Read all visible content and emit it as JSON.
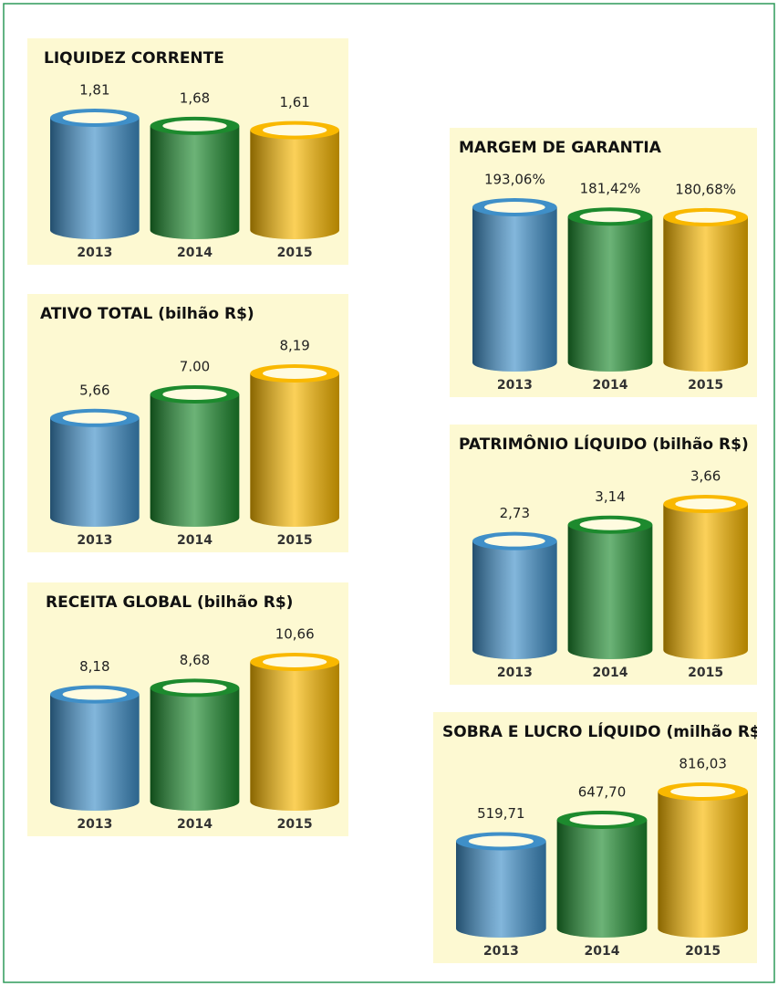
{
  "chart_data": [
    {
      "type": "bar",
      "title": "LIQUIDEZ CORRENTE",
      "categories": [
        "2013",
        "2014",
        "2015"
      ],
      "values": [
        1.81,
        1.68,
        1.61
      ],
      "value_labels": [
        "1,81",
        "1,68",
        "1,61"
      ],
      "colors": [
        "#3f8fc8",
        "#1d8a2e",
        "#f9b800"
      ]
    },
    {
      "type": "bar",
      "title": "ATIVO TOTAL (bilhão R$)",
      "categories": [
        "2013",
        "2014",
        "2015"
      ],
      "values": [
        5.66,
        7.0,
        8.19
      ],
      "value_labels": [
        "5,66",
        "7.00",
        "8,19"
      ],
      "colors": [
        "#3f8fc8",
        "#1d8a2e",
        "#f9b800"
      ]
    },
    {
      "type": "bar",
      "title": "RECEITA GLOBAL (bilhão R$)",
      "categories": [
        "2013",
        "2014",
        "2015"
      ],
      "values": [
        8.18,
        8.68,
        10.66
      ],
      "value_labels": [
        "8,18",
        "8,68",
        "10,66"
      ],
      "colors": [
        "#3f8fc8",
        "#1d8a2e",
        "#f9b800"
      ]
    },
    {
      "type": "bar",
      "title": "MARGEM DE GARANTIA",
      "categories": [
        "2013",
        "2014",
        "2015"
      ],
      "values": [
        193.06,
        181.42,
        180.68
      ],
      "value_labels": [
        "193,06%",
        "181,42%",
        "180,68%"
      ],
      "colors": [
        "#3f8fc8",
        "#1d8a2e",
        "#f9b800"
      ]
    },
    {
      "type": "bar",
      "title": "PATRIMÔNIO LÍQUIDO (bilhão R$)",
      "categories": [
        "2013",
        "2014",
        "2015"
      ],
      "values": [
        2.73,
        3.14,
        3.66
      ],
      "value_labels": [
        "2,73",
        "3,14",
        "3,66"
      ],
      "colors": [
        "#3f8fc8",
        "#1d8a2e",
        "#f9b800"
      ]
    },
    {
      "type": "bar",
      "title": "SOBRA E LUCRO LÍQUIDO (milhão R$)",
      "categories": [
        "2013",
        "2014",
        "2015"
      ],
      "values": [
        519.71,
        647.7,
        816.03
      ],
      "value_labels": [
        "519,71",
        "647,70",
        "816,03"
      ],
      "colors": [
        "#3f8fc8",
        "#1d8a2e",
        "#f9b800"
      ]
    }
  ]
}
